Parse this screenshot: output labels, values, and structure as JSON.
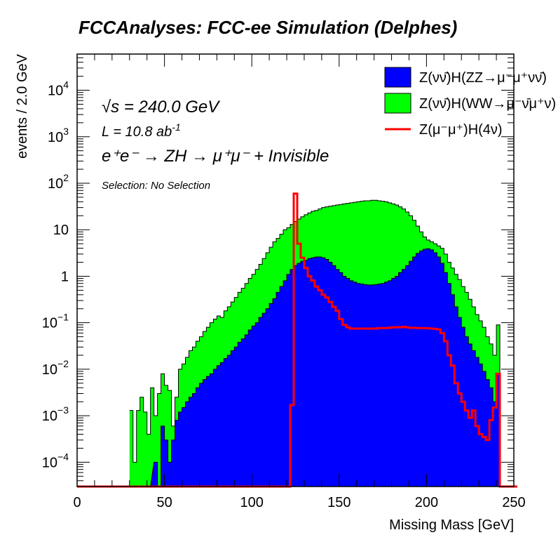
{
  "header": {
    "title": "FCCAnalyses: FCC-ee Simulation (Delphes)"
  },
  "annotations": {
    "sqrt_s": "√s = 240.0 GeV",
    "lumi": "L = 10.8 ab",
    "lumi_sup": "-1",
    "process": "e⁺e⁻ → ZH → μ⁺μ⁻ + Invisible",
    "selection": "Selection: No Selection"
  },
  "chart_data": {
    "type": "histogram",
    "xlabel": "Missing Mass [GeV]",
    "ylabel": "events / 2.0 GeV",
    "xlim": [
      0,
      250
    ],
    "ylim": [
      3e-05,
      60000
    ],
    "log_y": true,
    "grid": false,
    "legend_position": "top-right",
    "x_ticks": [
      "0",
      "50",
      "100",
      "150",
      "200",
      "250"
    ],
    "y_ticks": [
      {
        "base": "10",
        "exp": "4",
        "value": 10000
      },
      {
        "base": "10",
        "exp": "3",
        "value": 1000
      },
      {
        "base": "10",
        "exp": "2",
        "value": 100
      },
      {
        "base": "10",
        "exp": "",
        "value": 10
      },
      {
        "base": "1",
        "exp": "",
        "value": 1
      },
      {
        "base": "10",
        "exp": "−1",
        "value": 0.1
      },
      {
        "base": "10",
        "exp": "−2",
        "value": 0.01
      },
      {
        "base": "10",
        "exp": "−3",
        "value": 0.001
      },
      {
        "base": "10",
        "exp": "−4",
        "value": 0.0001
      }
    ],
    "series": [
      {
        "name": "Z(νν̄)H(WW→μ⁻ν̄μ⁺ν)",
        "style": "stacked-fill",
        "color": "#00ff00",
        "points": [
          [
            30,
            0.0013
          ],
          [
            32,
            0.0001
          ],
          [
            34,
            0.0013
          ],
          [
            36,
            0.0025
          ],
          [
            38,
            0.0012
          ],
          [
            40,
            0.0004
          ],
          [
            42,
            0.004
          ],
          [
            44,
            0.001
          ],
          [
            46,
            0.003
          ],
          [
            48,
            0.008
          ],
          [
            50,
            0.0045
          ],
          [
            52,
            0.0035
          ],
          [
            54,
            0.0006
          ],
          [
            56,
            0.0025
          ],
          [
            58,
            0.01
          ],
          [
            60,
            0.013
          ],
          [
            62,
            0.018
          ],
          [
            64,
            0.025
          ],
          [
            66,
            0.03
          ],
          [
            68,
            0.04
          ],
          [
            70,
            0.05
          ],
          [
            72,
            0.065
          ],
          [
            74,
            0.08
          ],
          [
            76,
            0.1
          ],
          [
            78,
            0.12
          ],
          [
            80,
            0.14
          ],
          [
            82,
            0.13
          ],
          [
            84,
            0.18
          ],
          [
            86,
            0.22
          ],
          [
            88,
            0.28
          ],
          [
            90,
            0.35
          ],
          [
            92,
            0.45
          ],
          [
            94,
            0.55
          ],
          [
            96,
            0.7
          ],
          [
            98,
            0.9
          ],
          [
            100,
            1.1
          ],
          [
            102,
            1.4
          ],
          [
            104,
            1.8
          ],
          [
            106,
            2.4
          ],
          [
            108,
            3.2
          ],
          [
            110,
            4.2
          ],
          [
            112,
            5.5
          ],
          [
            114,
            6.5
          ],
          [
            116,
            8
          ],
          [
            118,
            10
          ],
          [
            120,
            11
          ],
          [
            122,
            13
          ],
          [
            124,
            15
          ],
          [
            126,
            17
          ],
          [
            128,
            19
          ],
          [
            130,
            21
          ],
          [
            132,
            23
          ],
          [
            134,
            25
          ],
          [
            136,
            26
          ],
          [
            138,
            28
          ],
          [
            140,
            30
          ],
          [
            142,
            31
          ],
          [
            144,
            32
          ],
          [
            146,
            33
          ],
          [
            148,
            34
          ],
          [
            150,
            35
          ],
          [
            152,
            36
          ],
          [
            154,
            37
          ],
          [
            156,
            38
          ],
          [
            158,
            39
          ],
          [
            160,
            40
          ],
          [
            162,
            41
          ],
          [
            164,
            42
          ],
          [
            166,
            42
          ],
          [
            168,
            43
          ],
          [
            170,
            43
          ],
          [
            172,
            42
          ],
          [
            174,
            41
          ],
          [
            176,
            40
          ],
          [
            178,
            38
          ],
          [
            180,
            36
          ],
          [
            182,
            34
          ],
          [
            184,
            31
          ],
          [
            186,
            28
          ],
          [
            188,
            24
          ],
          [
            190,
            20
          ],
          [
            192,
            16
          ],
          [
            194,
            12
          ],
          [
            196,
            9
          ],
          [
            198,
            7
          ],
          [
            200,
            6
          ],
          [
            202,
            5.5
          ],
          [
            204,
            5
          ],
          [
            206,
            4.5
          ],
          [
            208,
            4
          ],
          [
            210,
            3
          ],
          [
            212,
            2
          ],
          [
            214,
            1.5
          ],
          [
            216,
            1.1
          ],
          [
            218,
            0.85
          ],
          [
            220,
            0.6
          ],
          [
            222,
            0.45
          ],
          [
            224,
            0.32
          ],
          [
            226,
            0.22
          ],
          [
            228,
            0.15
          ],
          [
            230,
            0.11
          ],
          [
            232,
            0.08
          ],
          [
            234,
            0.05
          ],
          [
            236,
            0.035
          ],
          [
            238,
            0.02
          ],
          [
            240,
            0.09
          ],
          [
            242,
            0.0
          ]
        ]
      },
      {
        "name": "Z(νν̄)H(ZZ→μ⁻μ⁺νν̄)",
        "style": "stacked-fill",
        "color": "#0000ff",
        "points": [
          [
            36,
            0.0
          ],
          [
            40,
            0.0
          ],
          [
            44,
            0.0001
          ],
          [
            46,
            0.0
          ],
          [
            48,
            0.0006
          ],
          [
            50,
            0.0003
          ],
          [
            52,
            0.0001
          ],
          [
            54,
            0.0003
          ],
          [
            56,
            0.0008
          ],
          [
            58,
            0.0012
          ],
          [
            60,
            0.0015
          ],
          [
            62,
            0.002
          ],
          [
            64,
            0.0025
          ],
          [
            66,
            0.003
          ],
          [
            68,
            0.004
          ],
          [
            70,
            0.005
          ],
          [
            72,
            0.006
          ],
          [
            74,
            0.007
          ],
          [
            76,
            0.008
          ],
          [
            78,
            0.01
          ],
          [
            80,
            0.012
          ],
          [
            82,
            0.014
          ],
          [
            84,
            0.017
          ],
          [
            86,
            0.02
          ],
          [
            88,
            0.025
          ],
          [
            90,
            0.03
          ],
          [
            92,
            0.038
          ],
          [
            94,
            0.045
          ],
          [
            96,
            0.055
          ],
          [
            98,
            0.07
          ],
          [
            100,
            0.085
          ],
          [
            102,
            0.1
          ],
          [
            104,
            0.13
          ],
          [
            106,
            0.16
          ],
          [
            108,
            0.2
          ],
          [
            110,
            0.26
          ],
          [
            112,
            0.33
          ],
          [
            114,
            0.45
          ],
          [
            116,
            0.6
          ],
          [
            118,
            0.8
          ],
          [
            120,
            1.1
          ],
          [
            122,
            1.4
          ],
          [
            124,
            1.7
          ],
          [
            126,
            1.9
          ],
          [
            128,
            2.1
          ],
          [
            130,
            2.2
          ],
          [
            132,
            2.4
          ],
          [
            134,
            2.5
          ],
          [
            136,
            2.6
          ],
          [
            138,
            2.6
          ],
          [
            140,
            2.5
          ],
          [
            142,
            2.3
          ],
          [
            144,
            2.0
          ],
          [
            146,
            1.7
          ],
          [
            148,
            1.4
          ],
          [
            150,
            1.2
          ],
          [
            152,
            1.0
          ],
          [
            154,
            0.9
          ],
          [
            156,
            0.8
          ],
          [
            158,
            0.75
          ],
          [
            160,
            0.7
          ],
          [
            162,
            0.68
          ],
          [
            164,
            0.66
          ],
          [
            166,
            0.65
          ],
          [
            168,
            0.65
          ],
          [
            170,
            0.66
          ],
          [
            172,
            0.68
          ],
          [
            174,
            0.7
          ],
          [
            176,
            0.75
          ],
          [
            178,
            0.8
          ],
          [
            180,
            0.9
          ],
          [
            182,
            1.0
          ],
          [
            184,
            1.2
          ],
          [
            186,
            1.4
          ],
          [
            188,
            1.7
          ],
          [
            190,
            2.1
          ],
          [
            192,
            2.6
          ],
          [
            194,
            3.1
          ],
          [
            196,
            3.5
          ],
          [
            198,
            3.8
          ],
          [
            200,
            3.9
          ],
          [
            202,
            3.7
          ],
          [
            204,
            3.2
          ],
          [
            206,
            2.6
          ],
          [
            208,
            1.9
          ],
          [
            210,
            1.2
          ],
          [
            212,
            0.7
          ],
          [
            214,
            0.4
          ],
          [
            216,
            0.22
          ],
          [
            218,
            0.13
          ],
          [
            220,
            0.08
          ],
          [
            222,
            0.05
          ],
          [
            224,
            0.035
          ],
          [
            226,
            0.025
          ],
          [
            228,
            0.018
          ],
          [
            230,
            0.013
          ],
          [
            232,
            0.009
          ],
          [
            234,
            0.006
          ],
          [
            236,
            0.004
          ],
          [
            238,
            0.002
          ],
          [
            240,
            0.008
          ],
          [
            242,
            0.0
          ]
        ]
      },
      {
        "name": "Z(μ⁻μ⁺)H(4ν)",
        "style": "line",
        "color": "#ff0000",
        "points": [
          [
            0,
            0.0
          ],
          [
            120,
            0.0
          ],
          [
            122,
            0.0017
          ],
          [
            124,
            60
          ],
          [
            126,
            5
          ],
          [
            128,
            2.5
          ],
          [
            130,
            1.5
          ],
          [
            132,
            1.0
          ],
          [
            134,
            0.8
          ],
          [
            136,
            0.6
          ],
          [
            138,
            0.5
          ],
          [
            140,
            0.4
          ],
          [
            142,
            0.35
          ],
          [
            144,
            0.28
          ],
          [
            146,
            0.22
          ],
          [
            148,
            0.18
          ],
          [
            150,
            0.12
          ],
          [
            152,
            0.09
          ],
          [
            154,
            0.08
          ],
          [
            156,
            0.075
          ],
          [
            158,
            0.075
          ],
          [
            160,
            0.075
          ],
          [
            162,
            0.075
          ],
          [
            164,
            0.075
          ],
          [
            166,
            0.075
          ],
          [
            168,
            0.075
          ],
          [
            170,
            0.075
          ],
          [
            172,
            0.077
          ],
          [
            174,
            0.077
          ],
          [
            176,
            0.077
          ],
          [
            178,
            0.078
          ],
          [
            180,
            0.08
          ],
          [
            182,
            0.08
          ],
          [
            184,
            0.08
          ],
          [
            186,
            0.082
          ],
          [
            188,
            0.08
          ],
          [
            190,
            0.078
          ],
          [
            192,
            0.078
          ],
          [
            194,
            0.077
          ],
          [
            196,
            0.077
          ],
          [
            198,
            0.077
          ],
          [
            200,
            0.076
          ],
          [
            202,
            0.075
          ],
          [
            204,
            0.074
          ],
          [
            206,
            0.072
          ],
          [
            208,
            0.06
          ],
          [
            210,
            0.04
          ],
          [
            212,
            0.02
          ],
          [
            214,
            0.012
          ],
          [
            216,
            0.005
          ],
          [
            218,
            0.003
          ],
          [
            220,
            0.002
          ],
          [
            222,
            0.0013
          ],
          [
            224,
            0.0009
          ],
          [
            226,
            0.0013
          ],
          [
            228,
            0.0006
          ],
          [
            230,
            0.0004
          ],
          [
            232,
            0.00035
          ],
          [
            234,
            0.0003
          ],
          [
            236,
            0.0008
          ],
          [
            238,
            0.0015
          ],
          [
            240,
            0.008
          ],
          [
            242,
            0.0
          ],
          [
            250,
            0.0
          ]
        ]
      }
    ]
  }
}
